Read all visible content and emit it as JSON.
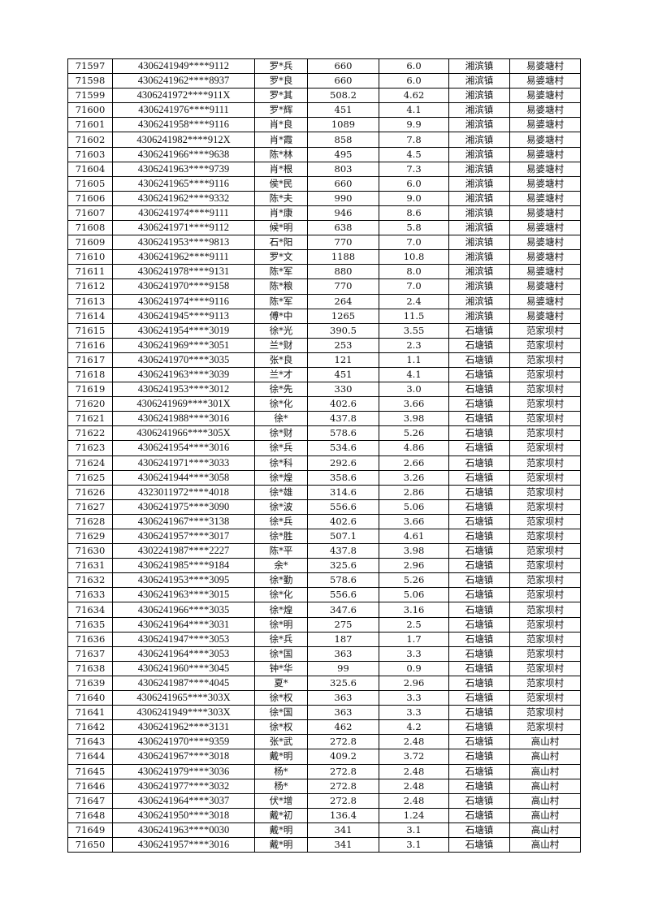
{
  "rows": [
    [
      "71597",
      "4306241949****9112",
      "罗*兵",
      "660",
      "6.0",
      "湘滨镇",
      "易婆塘村"
    ],
    [
      "71598",
      "4306241962****8937",
      "罗*良",
      "660",
      "6.0",
      "湘滨镇",
      "易婆塘村"
    ],
    [
      "71599",
      "4306241972****911X",
      "罗*其",
      "508.2",
      "4.62",
      "湘滨镇",
      "易婆塘村"
    ],
    [
      "71600",
      "4306241976****9111",
      "罗*辉",
      "451",
      "4.1",
      "湘滨镇",
      "易婆塘村"
    ],
    [
      "71601",
      "4306241958****9116",
      "肖*良",
      "1089",
      "9.9",
      "湘滨镇",
      "易婆塘村"
    ],
    [
      "71602",
      "4306241982****912X",
      "肖*霞",
      "858",
      "7.8",
      "湘滨镇",
      "易婆塘村"
    ],
    [
      "71603",
      "4306241966****9638",
      "陈*林",
      "495",
      "4.5",
      "湘滨镇",
      "易婆塘村"
    ],
    [
      "71604",
      "4306241963****9739",
      "肖*根",
      "803",
      "7.3",
      "湘滨镇",
      "易婆塘村"
    ],
    [
      "71605",
      "4306241965****9116",
      "侯*民",
      "660",
      "6.0",
      "湘滨镇",
      "易婆塘村"
    ],
    [
      "71606",
      "4306241962****9332",
      "陈*夫",
      "990",
      "9.0",
      "湘滨镇",
      "易婆塘村"
    ],
    [
      "71607",
      "4306241974****9111",
      "肖*康",
      "946",
      "8.6",
      "湘滨镇",
      "易婆塘村"
    ],
    [
      "71608",
      "4306241971****9112",
      "候*明",
      "638",
      "5.8",
      "湘滨镇",
      "易婆塘村"
    ],
    [
      "71609",
      "4306241953****9813",
      "石*阳",
      "770",
      "7.0",
      "湘滨镇",
      "易婆塘村"
    ],
    [
      "71610",
      "4306241962****9111",
      "罗*文",
      "1188",
      "10.8",
      "湘滨镇",
      "易婆塘村"
    ],
    [
      "71611",
      "4306241978****9131",
      "陈*军",
      "880",
      "8.0",
      "湘滨镇",
      "易婆塘村"
    ],
    [
      "71612",
      "4306241970****9158",
      "陈*粮",
      "770",
      "7.0",
      "湘滨镇",
      "易婆塘村"
    ],
    [
      "71613",
      "4306241974****9116",
      "陈*军",
      "264",
      "2.4",
      "湘滨镇",
      "易婆塘村"
    ],
    [
      "71614",
      "4306241945****9113",
      "傅*中",
      "1265",
      "11.5",
      "湘滨镇",
      "易婆塘村"
    ],
    [
      "71615",
      "4306241954****3019",
      "徐*光",
      "390.5",
      "3.55",
      "石塘镇",
      "范家坝村"
    ],
    [
      "71616",
      "4306241969****3051",
      "兰*财",
      "253",
      "2.3",
      "石塘镇",
      "范家坝村"
    ],
    [
      "71617",
      "4306241970****3035",
      "张*良",
      "121",
      "1.1",
      "石塘镇",
      "范家坝村"
    ],
    [
      "71618",
      "4306241963****3039",
      "兰*才",
      "451",
      "4.1",
      "石塘镇",
      "范家坝村"
    ],
    [
      "71619",
      "4306241953****3012",
      "徐*先",
      "330",
      "3.0",
      "石塘镇",
      "范家坝村"
    ],
    [
      "71620",
      "4306241969****301X",
      "徐*化",
      "402.6",
      "3.66",
      "石塘镇",
      "范家坝村"
    ],
    [
      "71621",
      "4306241988****3016",
      "徐*",
      "437.8",
      "3.98",
      "石塘镇",
      "范家坝村"
    ],
    [
      "71622",
      "4306241966****305X",
      "徐*财",
      "578.6",
      "5.26",
      "石塘镇",
      "范家坝村"
    ],
    [
      "71623",
      "4306241954****3016",
      "徐*兵",
      "534.6",
      "4.86",
      "石塘镇",
      "范家坝村"
    ],
    [
      "71624",
      "4306241971****3033",
      "徐*科",
      "292.6",
      "2.66",
      "石塘镇",
      "范家坝村"
    ],
    [
      "71625",
      "4306241944****3058",
      "徐*煌",
      "358.6",
      "3.26",
      "石塘镇",
      "范家坝村"
    ],
    [
      "71626",
      "4323011972****4018",
      "徐*雄",
      "314.6",
      "2.86",
      "石塘镇",
      "范家坝村"
    ],
    [
      "71627",
      "4306241975****3090",
      "徐*波",
      "556.6",
      "5.06",
      "石塘镇",
      "范家坝村"
    ],
    [
      "71628",
      "4306241967****3138",
      "徐*兵",
      "402.6",
      "3.66",
      "石塘镇",
      "范家坝村"
    ],
    [
      "71629",
      "4306241957****3017",
      "徐*胜",
      "507.1",
      "4.61",
      "石塘镇",
      "范家坝村"
    ],
    [
      "71630",
      "4302241987****2227",
      "陈*平",
      "437.8",
      "3.98",
      "石塘镇",
      "范家坝村"
    ],
    [
      "71631",
      "4306241985****9184",
      "余*",
      "325.6",
      "2.96",
      "石塘镇",
      "范家坝村"
    ],
    [
      "71632",
      "4306241953****3095",
      "徐*勤",
      "578.6",
      "5.26",
      "石塘镇",
      "范家坝村"
    ],
    [
      "71633",
      "4306241963****3015",
      "徐*化",
      "556.6",
      "5.06",
      "石塘镇",
      "范家坝村"
    ],
    [
      "71634",
      "4306241966****3035",
      "徐*煌",
      "347.6",
      "3.16",
      "石塘镇",
      "范家坝村"
    ],
    [
      "71635",
      "4306241964****3031",
      "徐*明",
      "275",
      "2.5",
      "石塘镇",
      "范家坝村"
    ],
    [
      "71636",
      "4306241947****3053",
      "徐*兵",
      "187",
      "1.7",
      "石塘镇",
      "范家坝村"
    ],
    [
      "71637",
      "4306241964****3053",
      "徐*国",
      "363",
      "3.3",
      "石塘镇",
      "范家坝村"
    ],
    [
      "71638",
      "4306241960****3045",
      "钟*华",
      "99",
      "0.9",
      "石塘镇",
      "范家坝村"
    ],
    [
      "71639",
      "4306241987****4045",
      "夏*",
      "325.6",
      "2.96",
      "石塘镇",
      "范家坝村"
    ],
    [
      "71640",
      "4306241965****303X",
      "徐*权",
      "363",
      "3.3",
      "石塘镇",
      "范家坝村"
    ],
    [
      "71641",
      "4306241949****303X",
      "徐*国",
      "363",
      "3.3",
      "石塘镇",
      "范家坝村"
    ],
    [
      "71642",
      "4306241962****3131",
      "徐*权",
      "462",
      "4.2",
      "石塘镇",
      "范家坝村"
    ],
    [
      "71643",
      "4306241970****9359",
      "张*武",
      "272.8",
      "2.48",
      "石塘镇",
      "高山村"
    ],
    [
      "71644",
      "4306241967****3018",
      "戴*明",
      "409.2",
      "3.72",
      "石塘镇",
      "高山村"
    ],
    [
      "71645",
      "4306241979****3036",
      "杨*",
      "272.8",
      "2.48",
      "石塘镇",
      "高山村"
    ],
    [
      "71646",
      "4306241977****3032",
      "杨*",
      "272.8",
      "2.48",
      "石塘镇",
      "高山村"
    ],
    [
      "71647",
      "4306241964****3037",
      "伏*增",
      "272.8",
      "2.48",
      "石塘镇",
      "高山村"
    ],
    [
      "71648",
      "4306241950****3018",
      "戴*初",
      "136.4",
      "1.24",
      "石塘镇",
      "高山村"
    ],
    [
      "71649",
      "4306241963****0030",
      "戴*明",
      "341",
      "3.1",
      "石塘镇",
      "高山村"
    ],
    [
      "71650",
      "4306241957****3016",
      "戴*明",
      "341",
      "3.1",
      "石塘镇",
      "高山村"
    ]
  ]
}
